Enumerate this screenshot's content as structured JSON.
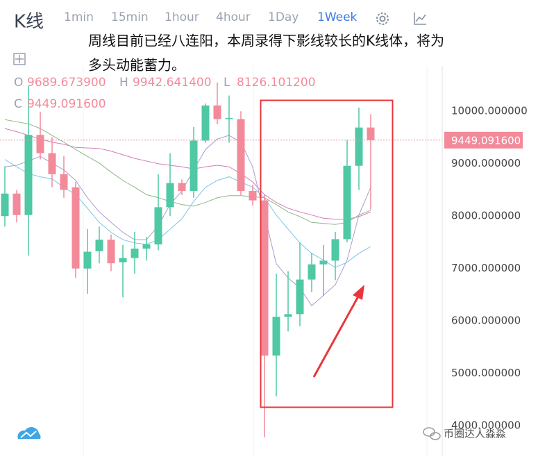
{
  "chart_data": {
    "type": "candlestick",
    "title": "K线",
    "tabs": [
      "1min",
      "15min",
      "1hour",
      "4hour",
      "1Day",
      "1Week"
    ],
    "active_tab": 5,
    "annotation": [
      "周线目前已经八连阳，本周录得下影线较长的K线体，将为",
      "多头动能蓄力。"
    ],
    "ohlc_legend": {
      "names": [
        "O",
        "H",
        "L",
        "C"
      ],
      "values": [
        "9689.673900",
        "9942.641400",
        "8126.101200",
        "9449.091600"
      ]
    },
    "last_price_label": "9449.091600",
    "watermark": "币圈达人淼淼",
    "up_color": "#4fc8a4",
    "down_color": "#f38a9a",
    "open": [
      8000,
      8430,
      8020,
      9550,
      9200,
      8800,
      8550,
      7000,
      7330,
      7550,
      7120,
      7200,
      7380,
      7460,
      8170,
      8630,
      8480,
      9440,
      10110,
      9850,
      9850,
      8480,
      8300,
      5340,
      6080,
      6130,
      6790,
      7080,
      7150,
      7560,
      8960,
      9689.6739
    ],
    "high": [
      8950,
      8500,
      10480,
      9990,
      9500,
      9150,
      8650,
      7750,
      7800,
      7650,
      7450,
      7700,
      7600,
      8800,
      9200,
      8700,
      9700,
      10150,
      10550,
      10300,
      10000,
      8600,
      8400,
      6900,
      6950,
      7500,
      7300,
      7450,
      7700,
      9450,
      10070,
      9942.6414
    ],
    "low": [
      7800,
      7880,
      7250,
      9080,
      8550,
      8350,
      6820,
      6520,
      7100,
      6950,
      6450,
      6900,
      7150,
      7350,
      8000,
      8400,
      8350,
      9400,
      9750,
      9400,
      8400,
      8200,
      3780,
      4560,
      5800,
      5900,
      6550,
      6480,
      6780,
      7500,
      8500,
      8126.1012
    ],
    "close": [
      8430,
      8020,
      9550,
      9200,
      8800,
      8500,
      7000,
      7320,
      7550,
      7100,
      7200,
      7380,
      7460,
      8170,
      8630,
      8480,
      9440,
      10110,
      9850,
      9870,
      8480,
      8300,
      5340,
      6080,
      6130,
      6790,
      7080,
      7150,
      7560,
      8960,
      9690,
      9449.0916
    ],
    "lines": [
      {
        "color": "#d77ab8",
        "values": [
          9670,
          9610,
          9540,
          9470,
          9410,
          9370,
          9310,
          9300,
          9290,
          9240,
          9170,
          9100,
          9050,
          9000,
          8970,
          8940,
          8900,
          8940,
          8970,
          8940,
          8810,
          8650,
          8410,
          8260,
          8150,
          8080,
          8020,
          7960,
          7940,
          7940,
          7990,
          8080
        ]
      },
      {
        "color": "#8cb884",
        "values": [
          9840,
          9800,
          9760,
          9670,
          9540,
          9410,
          9270,
          9140,
          9010,
          8840,
          8680,
          8550,
          8410,
          8350,
          8280,
          8220,
          8190,
          8260,
          8350,
          8390,
          8390,
          8370,
          8350,
          8220,
          8080,
          7990,
          7880,
          7860,
          7840,
          7880,
          8020,
          8110
        ]
      },
      {
        "color": "#a99ccf",
        "values": [
          8940,
          8970,
          9050,
          9140,
          9010,
          8880,
          8680,
          8350,
          8080,
          7880,
          7690,
          7550,
          7550,
          7820,
          8220,
          8480,
          8880,
          9270,
          9470,
          9540,
          9410,
          8940,
          8020,
          7090,
          6820,
          6630,
          6290,
          6490,
          6690,
          7160,
          8020,
          8550
        ]
      },
      {
        "color": "#7cc6e6",
        "values": [
          9080,
          8940,
          8810,
          8750,
          8710,
          8550,
          8410,
          8150,
          7880,
          7690,
          7550,
          7490,
          7460,
          7550,
          7750,
          7950,
          8280,
          8550,
          8680,
          8750,
          8650,
          8550,
          8350,
          8020,
          7750,
          7490,
          7290,
          7160,
          7020,
          7120,
          7290,
          7420
        ]
      }
    ],
    "ylim": [
      3420,
      10930
    ],
    "yticks": [
      {
        "value": 10000,
        "label": "10000.000000"
      },
      {
        "value": 9000,
        "label": "9000.000000"
      },
      {
        "value": 8000,
        "label": "8000.000000"
      },
      {
        "value": 7000,
        "label": "7000.000000"
      },
      {
        "value": 6000,
        "label": "6000.000000"
      },
      {
        "value": 5000,
        "label": "5000.000000"
      },
      {
        "value": 4000,
        "label": "4000.000000"
      }
    ]
  }
}
